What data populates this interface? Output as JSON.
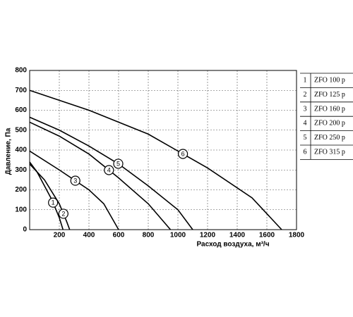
{
  "chart_data": {
    "type": "line",
    "ylabel": "Давление, Па",
    "xlabel": "Расход воздуха, м³/ч",
    "xlim": [
      0,
      1800
    ],
    "xticks": [
      200,
      400,
      600,
      800,
      1000,
      1200,
      1400,
      1600,
      1800
    ],
    "ylim": [
      0,
      800
    ],
    "yticks": [
      0,
      100,
      200,
      300,
      400,
      500,
      600,
      700,
      800
    ],
    "grid": true,
    "series": [
      {
        "name": "ZFO 100 p",
        "label": "1",
        "color": "#000000",
        "x": [
          0,
          50,
          100,
          150,
          200,
          225
        ],
        "values": [
          340,
          290,
          220,
          150,
          60,
          0
        ]
      },
      {
        "name": "ZFO 125 p",
        "label": "2",
        "color": "#000000",
        "x": [
          0,
          100,
          200,
          250,
          270
        ],
        "values": [
          330,
          250,
          130,
          40,
          0
        ]
      },
      {
        "name": "ZFO 160 p",
        "label": "3",
        "color": "#000000",
        "x": [
          0,
          200,
          400,
          500,
          600
        ],
        "values": [
          395,
          300,
          200,
          130,
          0
        ]
      },
      {
        "name": "ZFO 200 p",
        "label": "4",
        "color": "#000000",
        "x": [
          0,
          200,
          400,
          600,
          800,
          950
        ],
        "values": [
          540,
          470,
          380,
          260,
          130,
          0
        ]
      },
      {
        "name": "ZFO 250 p",
        "label": "5",
        "color": "#000000",
        "x": [
          0,
          200,
          400,
          600,
          800,
          1000,
          1100
        ],
        "values": [
          565,
          500,
          420,
          330,
          220,
          100,
          0
        ]
      },
      {
        "name": "ZFO 315 p",
        "label": "6",
        "color": "#000000",
        "x": [
          0,
          400,
          800,
          1200,
          1500,
          1700
        ],
        "values": [
          700,
          600,
          480,
          310,
          160,
          0
        ]
      }
    ]
  }
}
